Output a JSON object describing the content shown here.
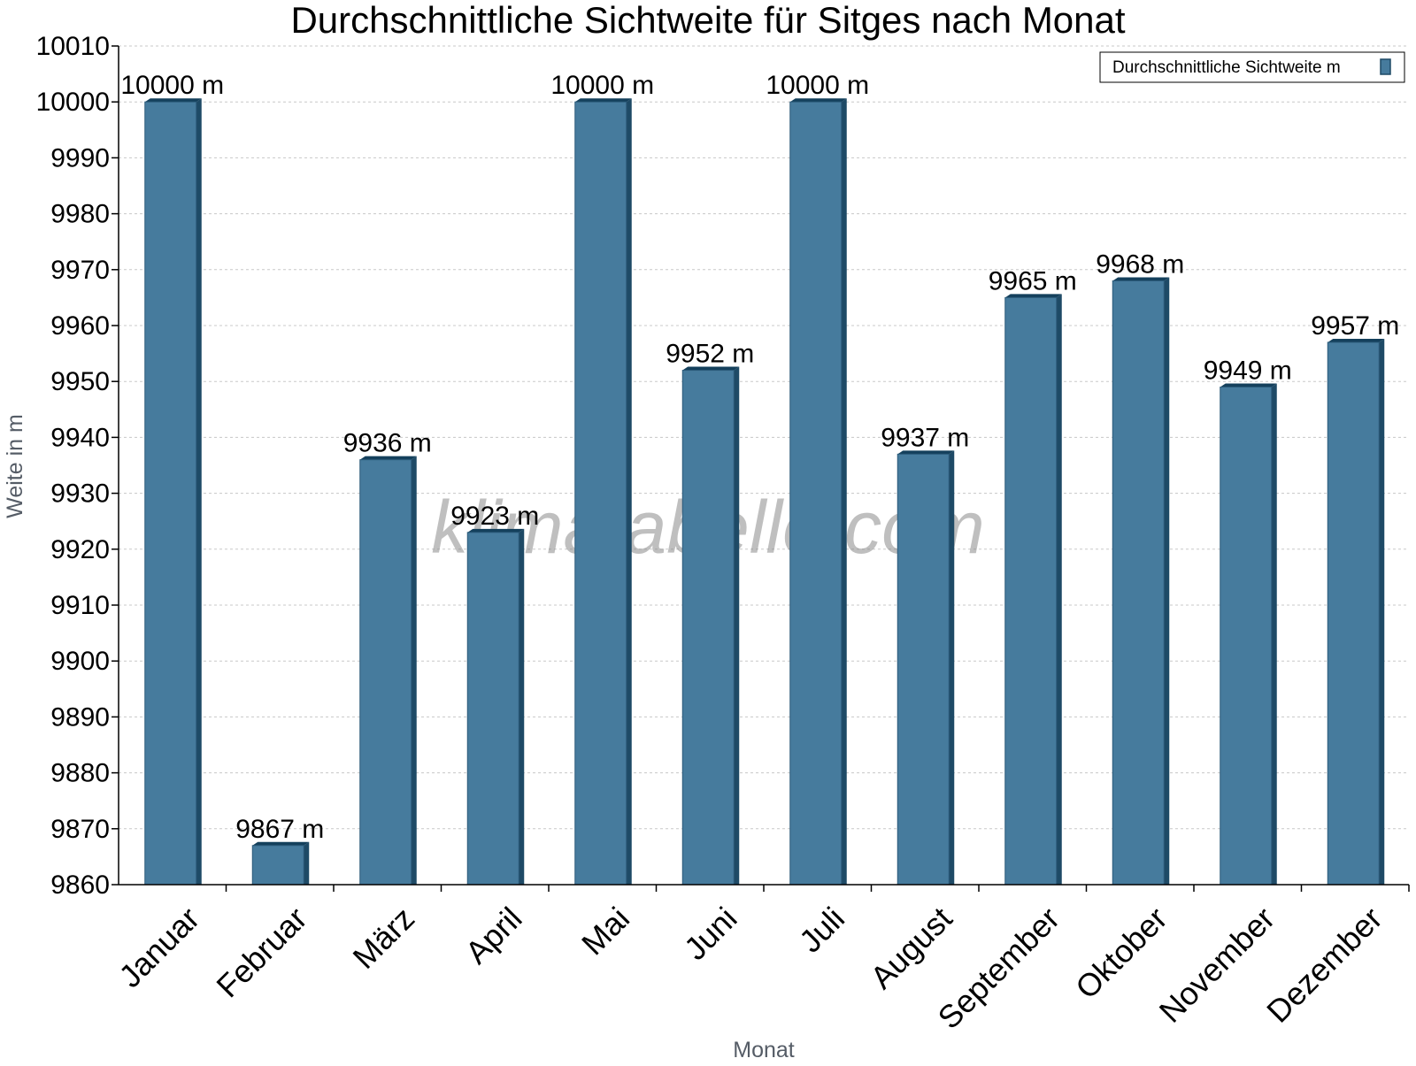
{
  "chart_data": {
    "type": "bar",
    "title": "Durchschnittliche Sichtweite für Sitges nach Monat",
    "xlabel": "Monat",
    "ylabel": "Weite in m",
    "ylim": [
      9860,
      10010
    ],
    "yticks": [
      9860,
      9870,
      9880,
      9890,
      9900,
      9910,
      9920,
      9930,
      9940,
      9950,
      9960,
      9970,
      9980,
      9990,
      10000,
      10010
    ],
    "categories": [
      "Januar",
      "Februar",
      "März",
      "April",
      "Mai",
      "Juni",
      "Juli",
      "August",
      "September",
      "Oktober",
      "November",
      "Dezember"
    ],
    "series": [
      {
        "name": "Durchschnittliche Sichtweite m",
        "values": [
          10000,
          9867,
          9936,
          9923,
          10000,
          9952,
          10000,
          9937,
          9965,
          9968,
          9949,
          9957
        ],
        "labels": [
          "10000 m",
          "9867 m",
          "9936 m",
          "9923 m",
          "10000 m",
          "9952 m",
          "10000 m",
          "9937 m",
          "9965 m",
          "9968 m",
          "9949 m",
          "9957 m"
        ]
      }
    ],
    "grid": true,
    "legend_position": "top-right",
    "watermark": "klimatabelle.com",
    "colors": {
      "bar": "#467b9d",
      "bar_side": "#1e4a66",
      "bar_top": "#14405c",
      "grid": "#c8c8c8"
    }
  }
}
